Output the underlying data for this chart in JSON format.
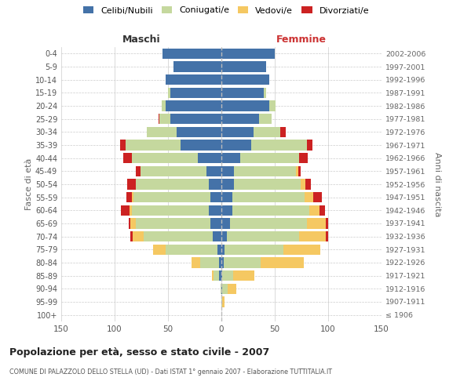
{
  "age_groups": [
    "100+",
    "95-99",
    "90-94",
    "85-89",
    "80-84",
    "75-79",
    "70-74",
    "65-69",
    "60-64",
    "55-59",
    "50-54",
    "45-49",
    "40-44",
    "35-39",
    "30-34",
    "25-29",
    "20-24",
    "15-19",
    "10-14",
    "5-9",
    "0-4"
  ],
  "birth_years": [
    "≤ 1906",
    "1907-1911",
    "1912-1916",
    "1917-1921",
    "1922-1926",
    "1927-1931",
    "1932-1936",
    "1937-1941",
    "1942-1946",
    "1947-1951",
    "1952-1956",
    "1957-1961",
    "1962-1966",
    "1967-1971",
    "1972-1976",
    "1977-1981",
    "1982-1986",
    "1987-1991",
    "1992-1996",
    "1997-2001",
    "2002-2006"
  ],
  "maschi": {
    "celibi": [
      0,
      0,
      0,
      2,
      2,
      4,
      8,
      10,
      12,
      10,
      12,
      14,
      22,
      38,
      42,
      48,
      52,
      48,
      52,
      45,
      55
    ],
    "coniugati": [
      0,
      0,
      1,
      5,
      18,
      48,
      65,
      70,
      72,
      72,
      68,
      62,
      62,
      52,
      28,
      10,
      4,
      2,
      0,
      0,
      0
    ],
    "vedovi": [
      0,
      0,
      0,
      2,
      8,
      12,
      10,
      5,
      2,
      2,
      0,
      0,
      0,
      0,
      0,
      0,
      0,
      0,
      0,
      0,
      0
    ],
    "divorziati": [
      0,
      0,
      0,
      0,
      0,
      0,
      2,
      2,
      8,
      5,
      8,
      4,
      8,
      5,
      0,
      1,
      0,
      0,
      0,
      0,
      0
    ]
  },
  "femmine": {
    "nubili": [
      0,
      0,
      1,
      1,
      2,
      3,
      5,
      8,
      10,
      10,
      12,
      12,
      18,
      28,
      30,
      35,
      45,
      40,
      45,
      42,
      50
    ],
    "coniugate": [
      0,
      1,
      5,
      10,
      35,
      55,
      68,
      72,
      72,
      68,
      62,
      58,
      55,
      52,
      25,
      12,
      6,
      2,
      0,
      0,
      0
    ],
    "vedove": [
      0,
      2,
      8,
      20,
      40,
      35,
      25,
      18,
      10,
      8,
      5,
      2,
      0,
      0,
      0,
      0,
      0,
      0,
      0,
      0,
      0
    ],
    "divorziate": [
      0,
      0,
      0,
      0,
      0,
      0,
      2,
      2,
      5,
      8,
      5,
      2,
      8,
      5,
      5,
      0,
      0,
      0,
      0,
      0,
      0
    ]
  },
  "colors": {
    "celibi": "#4472a8",
    "coniugati": "#c5d89e",
    "vedovi": "#f5c862",
    "divorziati": "#cc2222"
  },
  "legend_labels": [
    "Celibi/Nubili",
    "Coniugati/e",
    "Vedovi/e",
    "Divorziati/e"
  ],
  "title": "Popolazione per età, sesso e stato civile - 2007",
  "subtitle": "COMUNE DI PALAZZOLO DELLO STELLA (UD) - Dati ISTAT 1° gennaio 2007 - Elaborazione TUTTITALIA.IT",
  "label_maschi": "Maschi",
  "label_femmine": "Femmine",
  "ylabel_left": "Fasce di età",
  "ylabel_right": "Anni di nascita",
  "xlim": 150,
  "bg_color": "#ffffff",
  "grid_color": "#cccccc",
  "maschi_label_color": "#333333",
  "femmine_label_color": "#cc3333"
}
